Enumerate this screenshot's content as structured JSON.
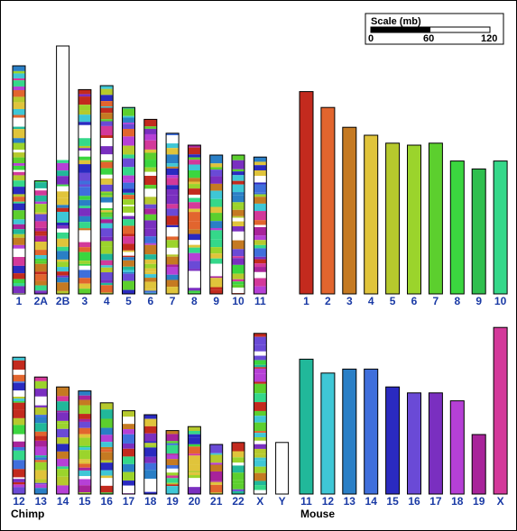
{
  "scale": {
    "title": "Scale (mb)",
    "ticks": [
      "0",
      "60",
      "120"
    ]
  },
  "species": {
    "left": "Chimp",
    "right": "Mouse"
  },
  "chimp_top": [
    {
      "label": "1",
      "length_mb": 115
    },
    {
      "label": "2A",
      "length_mb": 57
    },
    {
      "label": "2B",
      "length_mb": 125
    },
    {
      "label": "3",
      "length_mb": 103
    },
    {
      "label": "4",
      "length_mb": 105
    },
    {
      "label": "5",
      "length_mb": 94
    },
    {
      "label": "6",
      "length_mb": 88
    },
    {
      "label": "7",
      "length_mb": 81
    },
    {
      "label": "8",
      "length_mb": 75
    },
    {
      "label": "9",
      "length_mb": 70
    },
    {
      "label": "10",
      "length_mb": 70
    },
    {
      "label": "11",
      "length_mb": 69
    }
  ],
  "chimp_bottom": [
    {
      "label": "12",
      "length_mb": 69
    },
    {
      "label": "13",
      "length_mb": 59
    },
    {
      "label": "14",
      "length_mb": 54
    },
    {
      "label": "15",
      "length_mb": 52
    },
    {
      "label": "16",
      "length_mb": 46
    },
    {
      "label": "17",
      "length_mb": 42
    },
    {
      "label": "18",
      "length_mb": 40
    },
    {
      "label": "19",
      "length_mb": 32
    },
    {
      "label": "20",
      "length_mb": 34
    },
    {
      "label": "21",
      "length_mb": 25
    },
    {
      "label": "22",
      "length_mb": 26
    },
    {
      "label": "X",
      "length_mb": 81
    },
    {
      "label": "Y",
      "length_mb": 26
    }
  ],
  "mouse_top": [
    {
      "label": "1",
      "length_mb": 102,
      "color": "#c32a1e"
    },
    {
      "label": "2",
      "length_mb": 94,
      "color": "#e2652e"
    },
    {
      "label": "3",
      "length_mb": 84,
      "color": "#c57a22"
    },
    {
      "label": "4",
      "length_mb": 80,
      "color": "#e0c43b"
    },
    {
      "label": "5",
      "length_mb": 76,
      "color": "#b6c92d"
    },
    {
      "label": "6",
      "length_mb": 75,
      "color": "#9bd42c"
    },
    {
      "label": "7",
      "length_mb": 76,
      "color": "#5ccf2e"
    },
    {
      "label": "8",
      "length_mb": 67,
      "color": "#3bd63f"
    },
    {
      "label": "9",
      "length_mb": 63,
      "color": "#2fbf4e"
    },
    {
      "label": "10",
      "length_mb": 67,
      "color": "#35d88a"
    }
  ],
  "mouse_bottom": [
    {
      "label": "11",
      "length_mb": 68,
      "color": "#21b89a"
    },
    {
      "label": "12",
      "length_mb": 61,
      "color": "#3fc7d6"
    },
    {
      "label": "13",
      "length_mb": 63,
      "color": "#2a7fc6"
    },
    {
      "label": "14",
      "length_mb": 63,
      "color": "#3f6fdc"
    },
    {
      "label": "15",
      "length_mb": 54,
      "color": "#2a2ac0"
    },
    {
      "label": "16",
      "length_mb": 51,
      "color": "#6a4ad6"
    },
    {
      "label": "17",
      "length_mb": 51,
      "color": "#7a2fc0"
    },
    {
      "label": "18",
      "length_mb": 47,
      "color": "#b640d6"
    },
    {
      "label": "19",
      "length_mb": 30,
      "color": "#a8239a"
    },
    {
      "label": "X",
      "length_mb": 84,
      "color": "#d3399a"
    }
  ]
}
